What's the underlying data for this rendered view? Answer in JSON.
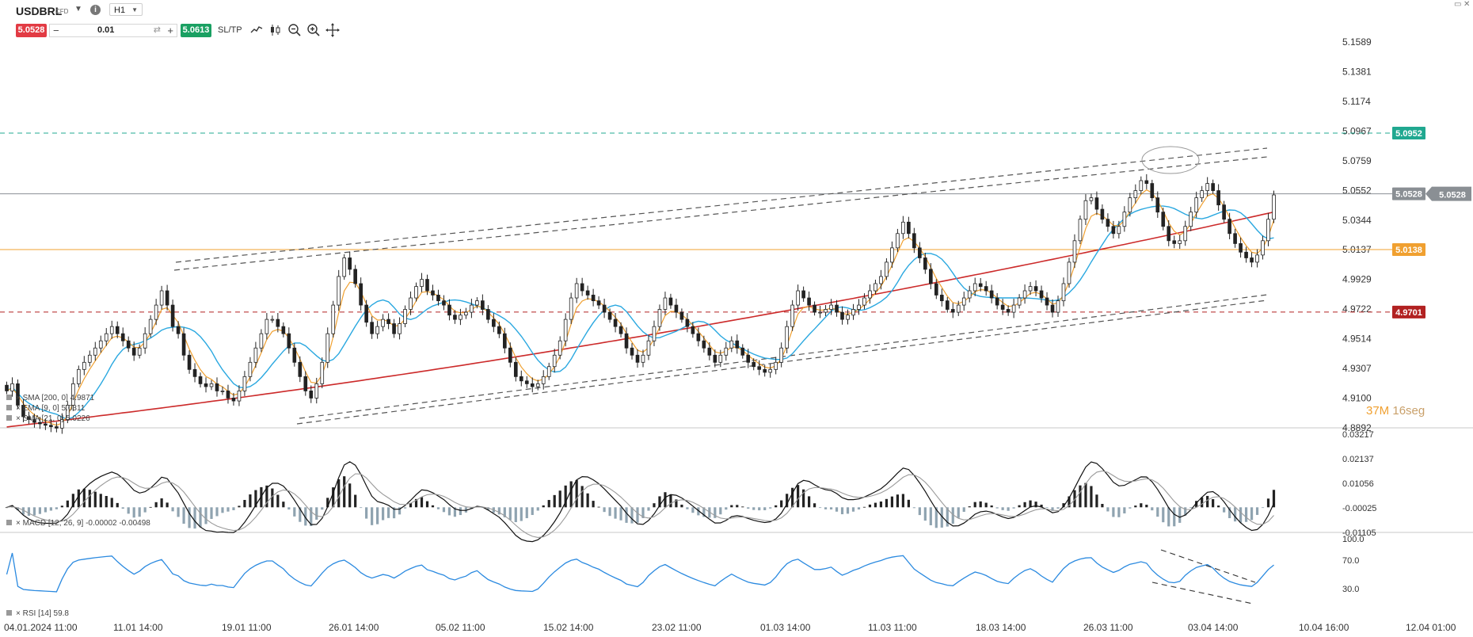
{
  "instrument": {
    "symbol": "USDBRL",
    "type": "CFD",
    "timeframe": "H1",
    "info_icon": "info-icon"
  },
  "order_panel": {
    "sell_price": "5.0528",
    "buy_price": "5.0613",
    "quantity": "0.01",
    "minus_label": "−",
    "plus_label": "+",
    "sltp_label": "SL/TP"
  },
  "tools": [
    "line-chart-icon",
    "candlestick-icon",
    "zoom-out-icon",
    "zoom-in-icon",
    "crosshair-icon"
  ],
  "colors": {
    "sell": "#e23b44",
    "buy": "#1aa062",
    "candle": "#222222",
    "ema9": "#f0a030",
    "sma21": "#2aa8e0",
    "sma200": "#cc2a2a",
    "resistance": "#20a890",
    "support_orange": "#f0a030",
    "support_red": "#b22222",
    "rsi": "#2b8ae0"
  },
  "chart_data": [
    {
      "type": "candlestick",
      "title": "USDBRL",
      "ylim": [
        4.8892,
        5.1589
      ],
      "y_ticks": [
        "5.1589",
        "5.1381",
        "5.1174",
        "5.0967",
        "5.0759",
        "5.0552",
        "5.0344",
        "5.0137",
        "4.9929",
        "4.9722",
        "4.9514",
        "4.9307",
        "4.9100",
        "4.8892"
      ],
      "x_ticks": [
        "04.01.2024 11:00",
        "11.01 14:00",
        "19.01 11:00",
        "26.01 14:00",
        "05.02 11:00",
        "15.02 14:00",
        "23.02 11:00",
        "01.03 14:00",
        "11.03 11:00",
        "18.03 14:00",
        "26.03 11:00",
        "03.04 14:00",
        "10.04 16:00",
        "12.04 01:00"
      ],
      "close": [
        4.915,
        4.92,
        4.905,
        4.897,
        4.895,
        4.893,
        4.892,
        4.891,
        4.89,
        4.889,
        4.895,
        4.905,
        4.92,
        4.93,
        4.935,
        4.94,
        4.945,
        4.95,
        4.955,
        4.96,
        4.955,
        4.95,
        4.945,
        4.94,
        4.945,
        4.955,
        4.965,
        4.975,
        4.985,
        4.975,
        4.96,
        4.955,
        4.94,
        4.93,
        4.925,
        4.92,
        4.918,
        4.92,
        4.915,
        4.915,
        4.91,
        4.908,
        4.915,
        4.925,
        4.935,
        4.945,
        4.955,
        4.965,
        4.965,
        4.96,
        4.955,
        4.945,
        4.935,
        4.925,
        4.915,
        4.91,
        4.92,
        4.935,
        4.955,
        4.975,
        4.995,
        5.008,
        5.0,
        4.99,
        4.975,
        4.963,
        4.955,
        4.96,
        4.965,
        4.962,
        4.955,
        4.962,
        4.972,
        4.98,
        4.988,
        4.993,
        4.985,
        4.982,
        4.978,
        4.975,
        4.968,
        4.965,
        4.968,
        4.97,
        4.975,
        4.978,
        4.972,
        4.965,
        4.96,
        4.955,
        4.945,
        4.935,
        4.925,
        4.922,
        4.92,
        4.918,
        4.92,
        4.925,
        4.932,
        4.94,
        4.95,
        4.965,
        4.98,
        4.99,
        4.985,
        4.982,
        4.978,
        4.975,
        4.97,
        4.965,
        4.96,
        4.955,
        4.945,
        4.94,
        4.935,
        4.94,
        4.95,
        4.96,
        4.972,
        4.98,
        4.975,
        4.97,
        4.965,
        4.96,
        4.955,
        4.95,
        4.945,
        4.94,
        4.935,
        4.94,
        4.945,
        4.95,
        4.945,
        4.94,
        4.935,
        4.932,
        4.93,
        4.928,
        4.93,
        4.935,
        4.945,
        4.96,
        4.975,
        4.985,
        4.98,
        4.975,
        4.97,
        4.97,
        4.972,
        4.975,
        4.97,
        4.965,
        4.968,
        4.972,
        4.975,
        4.98,
        4.985,
        4.99,
        4.995,
        5.005,
        5.015,
        5.025,
        5.033,
        5.025,
        5.015,
        5.008,
        5.0,
        4.99,
        4.982,
        4.978,
        4.972,
        4.97,
        4.975,
        4.98,
        4.985,
        4.99,
        4.988,
        4.985,
        4.98,
        4.975,
        4.972,
        4.97,
        4.975,
        4.98,
        4.985,
        4.988,
        4.985,
        4.98,
        4.975,
        4.97,
        4.978,
        4.99,
        5.005,
        5.02,
        5.035,
        5.048,
        5.05,
        5.042,
        5.035,
        5.03,
        5.025,
        5.03,
        5.04,
        5.05,
        5.055,
        5.062,
        5.06,
        5.05,
        5.04,
        5.03,
        5.02,
        5.018,
        5.02,
        5.03,
        5.04,
        5.05,
        5.055,
        5.06,
        5.055,
        5.045,
        5.035,
        5.025,
        5.018,
        5.012,
        5.008,
        5.005,
        5.01,
        5.02,
        5.035,
        5.052
      ],
      "overlays": [
        {
          "name": "SMA [200, 0]",
          "value": "4.9871"
        },
        {
          "name": "EMA [9, 0]",
          "value": "5.0311"
        },
        {
          "name": "SMA [21, 0]",
          "value": "5.0226"
        }
      ],
      "horizontal_levels": [
        {
          "value": 5.0952,
          "label": "5.0952",
          "style": "dashed",
          "color": "#20a890"
        },
        {
          "value": 5.0528,
          "label": "5.0528",
          "style": "solid",
          "color": "#8a8f94"
        },
        {
          "value": 5.0138,
          "label": "5.0138",
          "style": "solid",
          "color": "#f0a030"
        },
        {
          "value": 4.9701,
          "label": "4.9701",
          "style": "dashed",
          "color": "#b22222"
        }
      ],
      "countdown": {
        "minutes": "37M",
        "seconds": "16seg"
      }
    },
    {
      "type": "macd",
      "title": "MACD [12, 26, 9]",
      "values": [
        "-0.00002",
        "-0.00498"
      ],
      "ylim": [
        -0.01105,
        0.03217
      ],
      "y_ticks": [
        "0.03217",
        "0.02137",
        "0.01056",
        "-0.00025",
        "-0.01105"
      ]
    },
    {
      "type": "rsi",
      "title": "RSI [14]",
      "value": "59.8",
      "ylim": [
        0,
        100
      ],
      "y_ticks": [
        "100.0",
        "70.0",
        "30.0"
      ]
    }
  ]
}
